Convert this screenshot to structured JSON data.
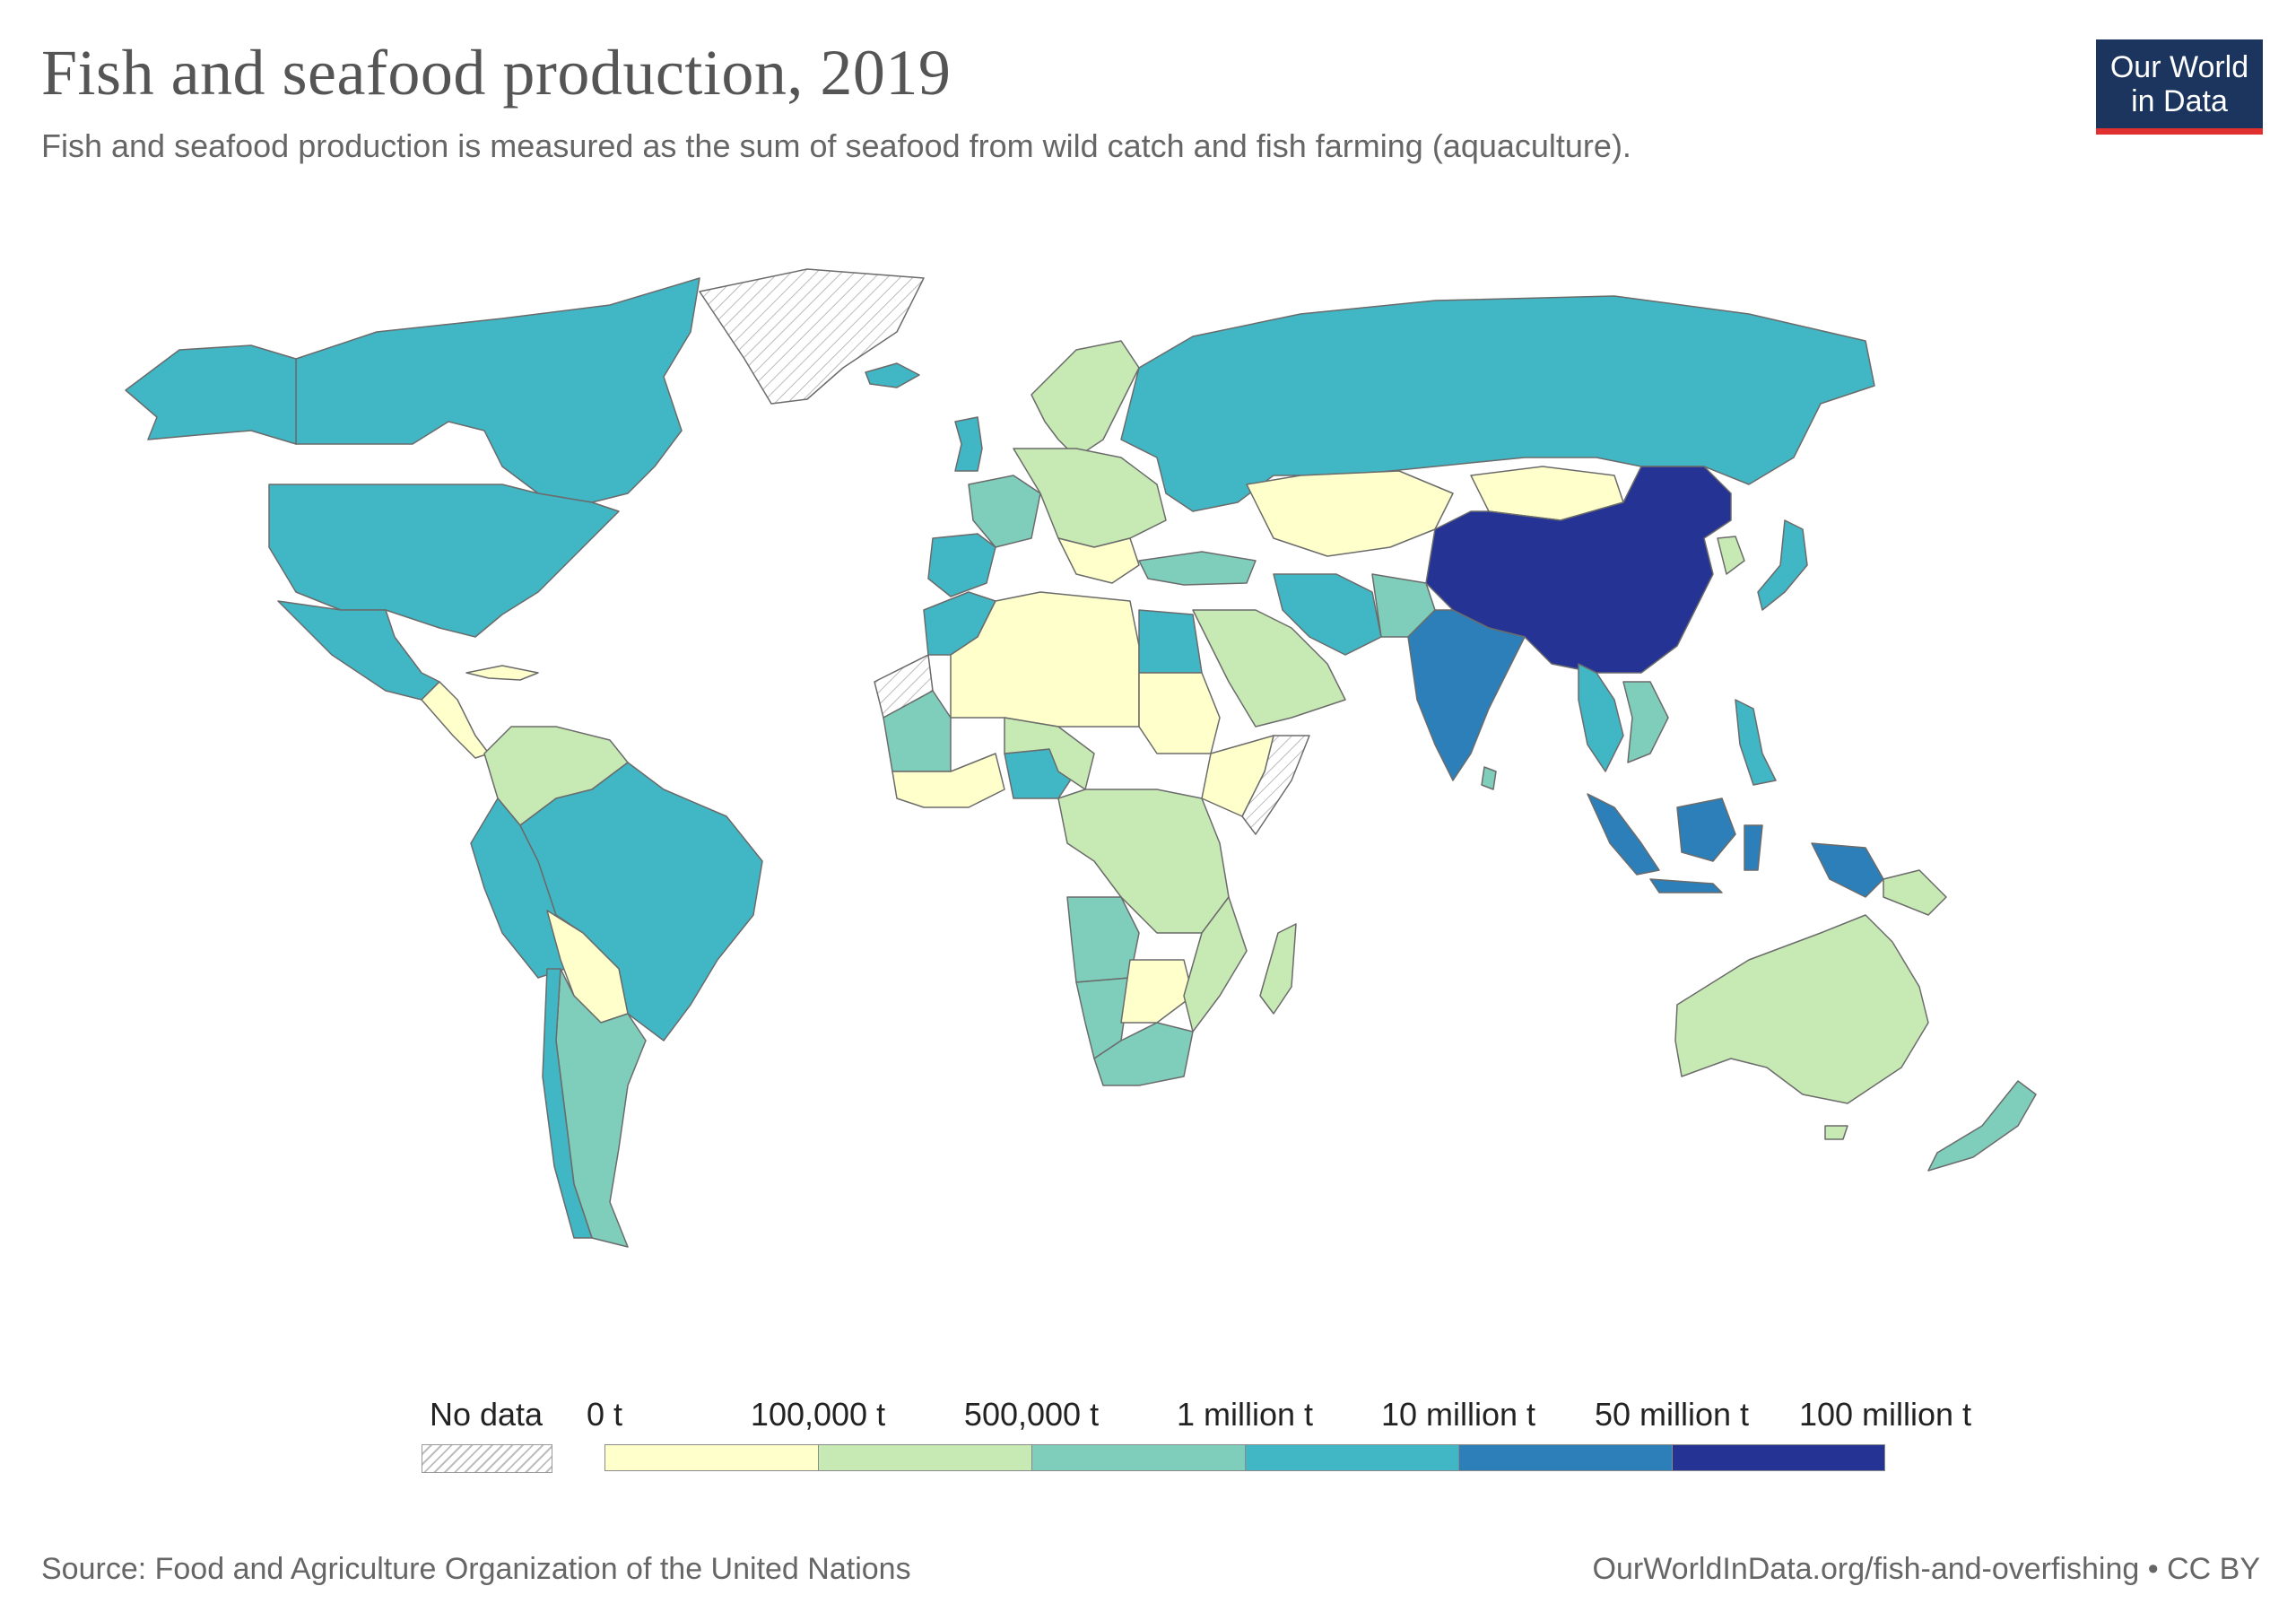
{
  "header": {
    "title": "Fish and seafood production, 2019",
    "subtitle": "Fish and seafood production is measured as the sum of seafood from wild catch and fish farming (aquaculture)."
  },
  "logo": {
    "line1": "Our World",
    "line2": "in Data",
    "bg_color": "#1c355e",
    "accent_color": "#e0302f"
  },
  "legend": {
    "no_data_label": "No data",
    "bins": [
      {
        "label": "0 t",
        "color": "#ffffcc"
      },
      {
        "label": "100,000 t",
        "color": "#c7e9b4"
      },
      {
        "label": "500,000 t",
        "color": "#7fcdbb"
      },
      {
        "label": "1 million t",
        "color": "#41b6c4"
      },
      {
        "label": "10 million t",
        "color": "#2c7fb8"
      },
      {
        "label": "50 million t",
        "color": "#253494"
      }
    ],
    "end_label": "100 million t"
  },
  "footer": {
    "source": "Source: Food and Agriculture Organization of the United Nations",
    "url": "OurWorldInData.org/fish-and-overfishing • CC BY"
  }
}
